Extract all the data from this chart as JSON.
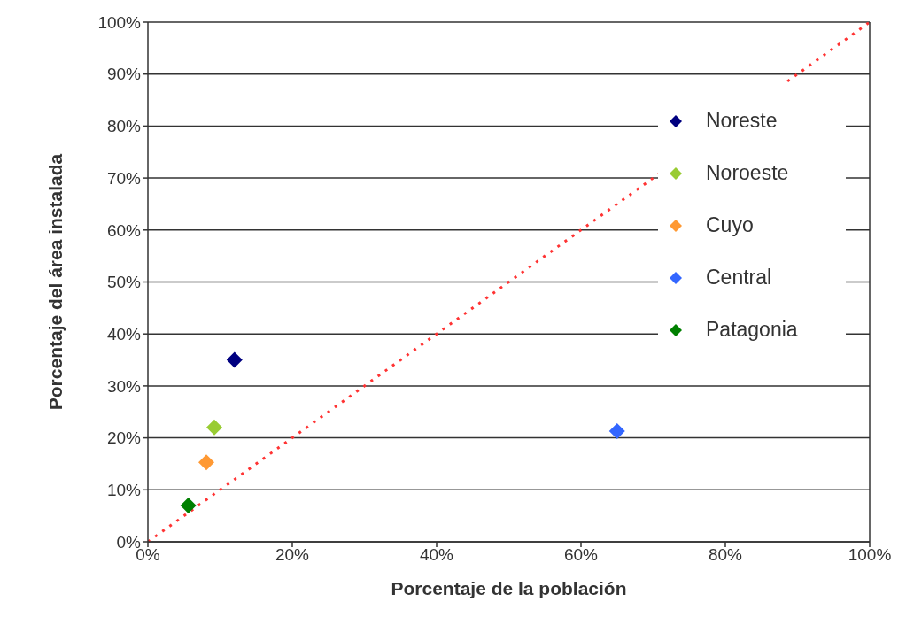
{
  "chart_data": {
    "type": "scatter",
    "xlabel": "Porcentaje de la población",
    "ylabel": "Porcentaje del área instalada",
    "series": [
      {
        "name": "Noreste",
        "color": "#000080",
        "x": [
          12
        ],
        "values": [
          35
        ]
      },
      {
        "name": "Noroeste",
        "color": "#99cc33",
        "x": [
          9.2
        ],
        "values": [
          22
        ]
      },
      {
        "name": "Cuyo",
        "color": "#ff9933",
        "x": [
          8.1
        ],
        "values": [
          15.3
        ]
      },
      {
        "name": "Central",
        "color": "#3366ff",
        "x": [
          65
        ],
        "values": [
          21.3
        ]
      },
      {
        "name": "Patagonia",
        "color": "#008000",
        "x": [
          5.6
        ],
        "values": [
          7
        ]
      },
      {
        "type": "line",
        "color": "#ff3333",
        "x": [
          0,
          100
        ],
        "values": [
          0,
          100
        ],
        "line_style": "dotted",
        "marker": "none"
      }
    ],
    "marker": "diamond",
    "xlim": [
      0,
      100
    ],
    "ylim": [
      0,
      100
    ],
    "xticks": [
      {
        "value": 0,
        "label": "0%"
      },
      {
        "value": 20,
        "label": "20%"
      },
      {
        "value": 40,
        "label": "40%"
      },
      {
        "value": 60,
        "label": "60%"
      },
      {
        "value": 80,
        "label": "80%"
      },
      {
        "value": 100,
        "label": "100%"
      }
    ],
    "yticks": [
      {
        "value": 0,
        "label": "0%"
      },
      {
        "value": 10,
        "label": "10%"
      },
      {
        "value": 20,
        "label": "20%"
      },
      {
        "value": 30,
        "label": "30%"
      },
      {
        "value": 40,
        "label": "40%"
      },
      {
        "value": 50,
        "label": "50%"
      },
      {
        "value": 60,
        "label": "60%"
      },
      {
        "value": 70,
        "label": "70%"
      },
      {
        "value": 80,
        "label": "80%"
      },
      {
        "value": 90,
        "label": "90%"
      },
      {
        "value": 100,
        "label": "100%"
      }
    ],
    "grid": "y",
    "legend": "top right"
  }
}
